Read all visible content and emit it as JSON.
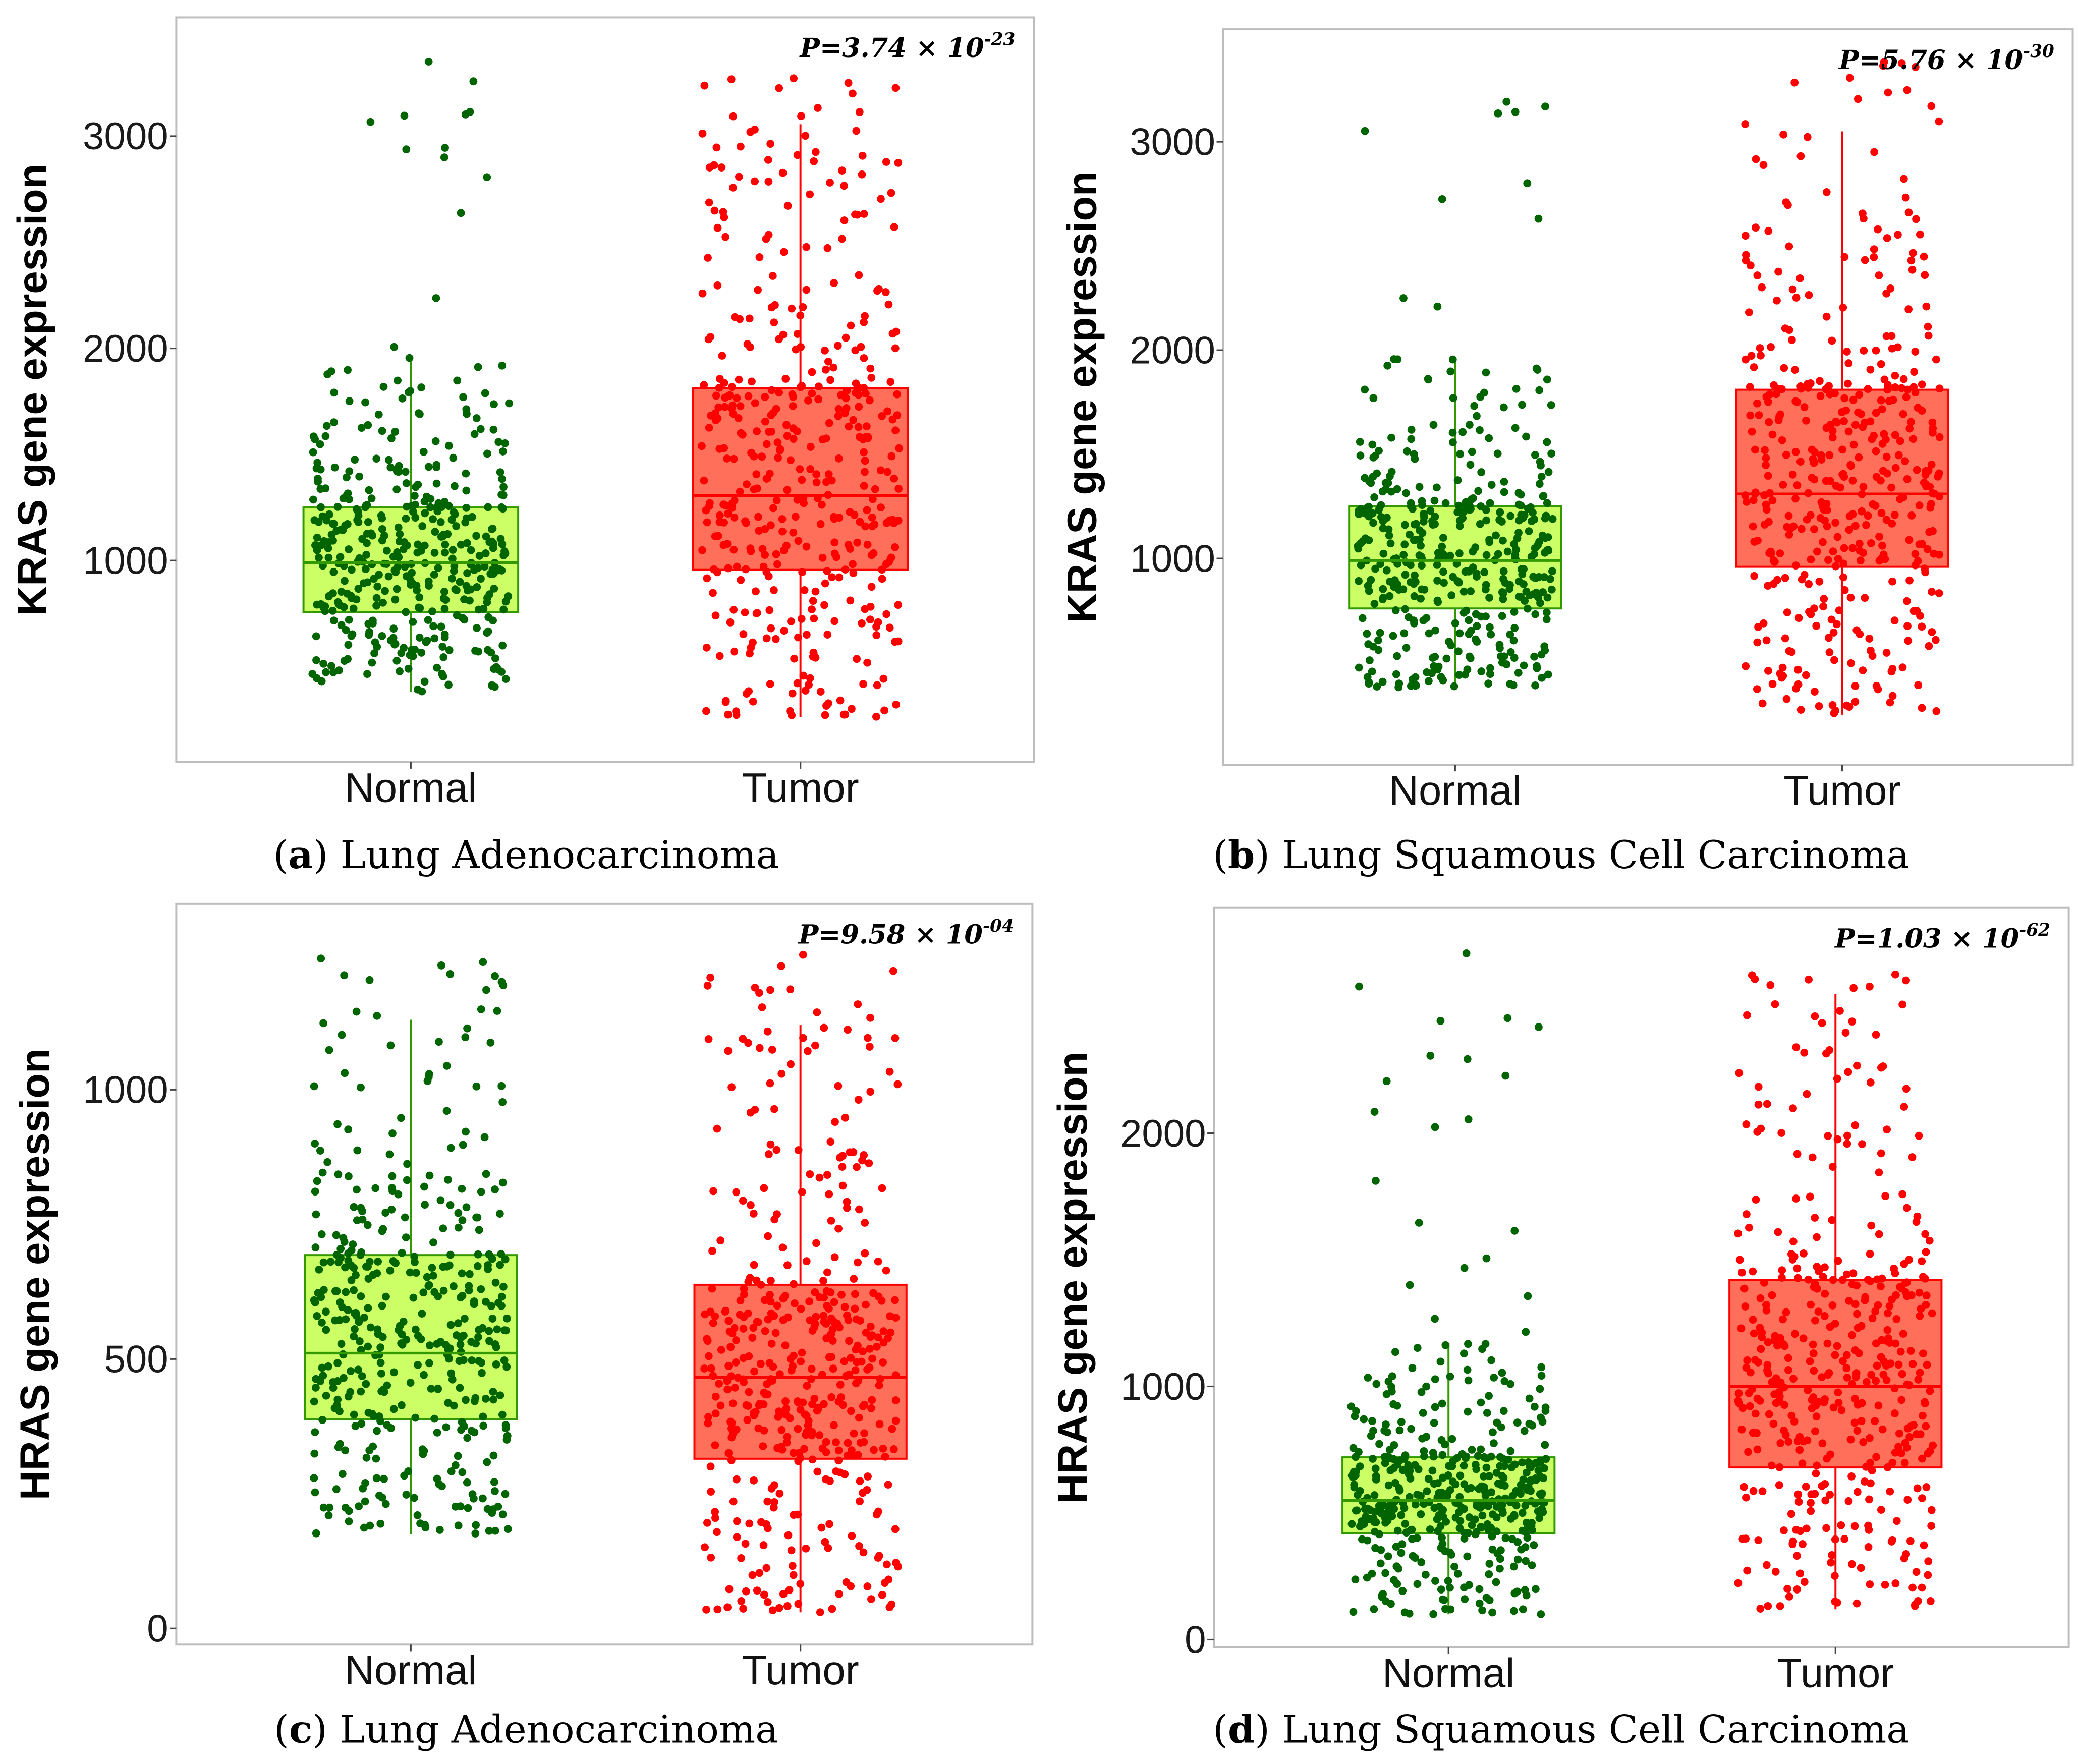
{
  "chart_data": [
    {
      "type": "box",
      "panel": "a",
      "caption_letter": "a",
      "caption": "Lung Adenocarcinoma",
      "ylabel": "KRAS gene expression",
      "yticks": [
        1000,
        2000,
        3000
      ],
      "ylim": [
        50,
        3560
      ],
      "categories": [
        "Normal",
        "Tumor"
      ],
      "p_value": {
        "prefix": "P=3.74 × 10",
        "exp": "-23"
      },
      "series": [
        {
          "name": "Normal",
          "color": "#006400",
          "box_fill": "#ccff66",
          "box_edge": "#339900",
          "n": 420,
          "q1": 756,
          "median": 990,
          "q3": 1250,
          "whisker_low": 380,
          "whisker_high": 1960,
          "min": 370,
          "max": 3410
        },
        {
          "name": "Tumor",
          "color": "#ff0000",
          "box_fill": "#ff6f5a",
          "box_edge": "#ff0000",
          "n": 430,
          "q1": 956,
          "median": 1306,
          "q3": 1812,
          "whisker_low": 262,
          "whisker_high": 3056,
          "min": 262,
          "max": 3400
        }
      ]
    },
    {
      "type": "box",
      "panel": "b",
      "caption_letter": "b",
      "caption": "Lung Squamous Cell Carcinoma",
      "ylabel": "KRAS gene expression",
      "yticks": [
        1000,
        2000,
        3000
      ],
      "ylim": [
        10,
        3540
      ],
      "categories": [
        "Normal",
        "Tumor"
      ],
      "p_value": {
        "prefix": "P=5.76 × 10",
        "exp": "-30"
      },
      "series": [
        {
          "name": "Normal",
          "color": "#006400",
          "box_fill": "#ccff66",
          "box_edge": "#339900",
          "n": 420,
          "q1": 760,
          "median": 990,
          "q3": 1250,
          "whisker_low": 380,
          "whisker_high": 1960,
          "min": 370,
          "max": 3410
        },
        {
          "name": "Tumor",
          "color": "#ff0000",
          "box_fill": "#ff6f5a",
          "box_edge": "#ff0000",
          "n": 430,
          "q1": 960,
          "median": 1310,
          "q3": 1810,
          "whisker_low": 250,
          "whisker_high": 3050,
          "min": 250,
          "max": 3400
        }
      ]
    },
    {
      "type": "box",
      "panel": "c",
      "caption_letter": "c",
      "caption": "Lung Adenocarcinoma",
      "ylabel": "HRAS gene expression",
      "yticks": [
        0,
        500,
        1000
      ],
      "ylim": [
        -30,
        1345
      ],
      "categories": [
        "Normal",
        "Tumor"
      ],
      "p_value": {
        "prefix": "P=9.58 × 10",
        "exp": "-04"
      },
      "series": [
        {
          "name": "Normal",
          "color": "#006400",
          "box_fill": "#ccff66",
          "box_edge": "#339900",
          "n": 420,
          "q1": 388,
          "median": 511,
          "q3": 693,
          "whisker_low": 175,
          "whisker_high": 1130,
          "min": 170,
          "max": 1270
        },
        {
          "name": "Tumor",
          "color": "#ff0000",
          "box_fill": "#ff6f5a",
          "box_edge": "#ff0000",
          "n": 450,
          "q1": 315,
          "median": 466,
          "q3": 638,
          "whisker_low": 30,
          "whisker_high": 1120,
          "min": 30,
          "max": 1260
        }
      ]
    },
    {
      "type": "box",
      "panel": "d",
      "caption_letter": "d",
      "caption": "Lung Squamous Cell Carcinoma",
      "ylabel": "HRAS gene expression",
      "yticks": [
        0,
        1000,
        2000
      ],
      "ylim": [
        -30,
        2890
      ],
      "categories": [
        "Normal",
        "Tumor"
      ],
      "p_value": {
        "prefix": "P=1.03 × 10",
        "exp": "-62"
      },
      "series": [
        {
          "name": "Normal",
          "color": "#006400",
          "box_fill": "#ccff66",
          "box_edge": "#339900",
          "n": 450,
          "q1": 420,
          "median": 550,
          "q3": 720,
          "whisker_low": 100,
          "whisker_high": 1170,
          "min": 100,
          "max": 2740
        },
        {
          "name": "Tumor",
          "color": "#ff0000",
          "box_fill": "#ff6f5a",
          "box_edge": "#ff0000",
          "n": 430,
          "q1": 680,
          "median": 1000,
          "q3": 1420,
          "whisker_low": 120,
          "whisker_high": 2550,
          "min": 120,
          "max": 2640
        }
      ]
    }
  ]
}
